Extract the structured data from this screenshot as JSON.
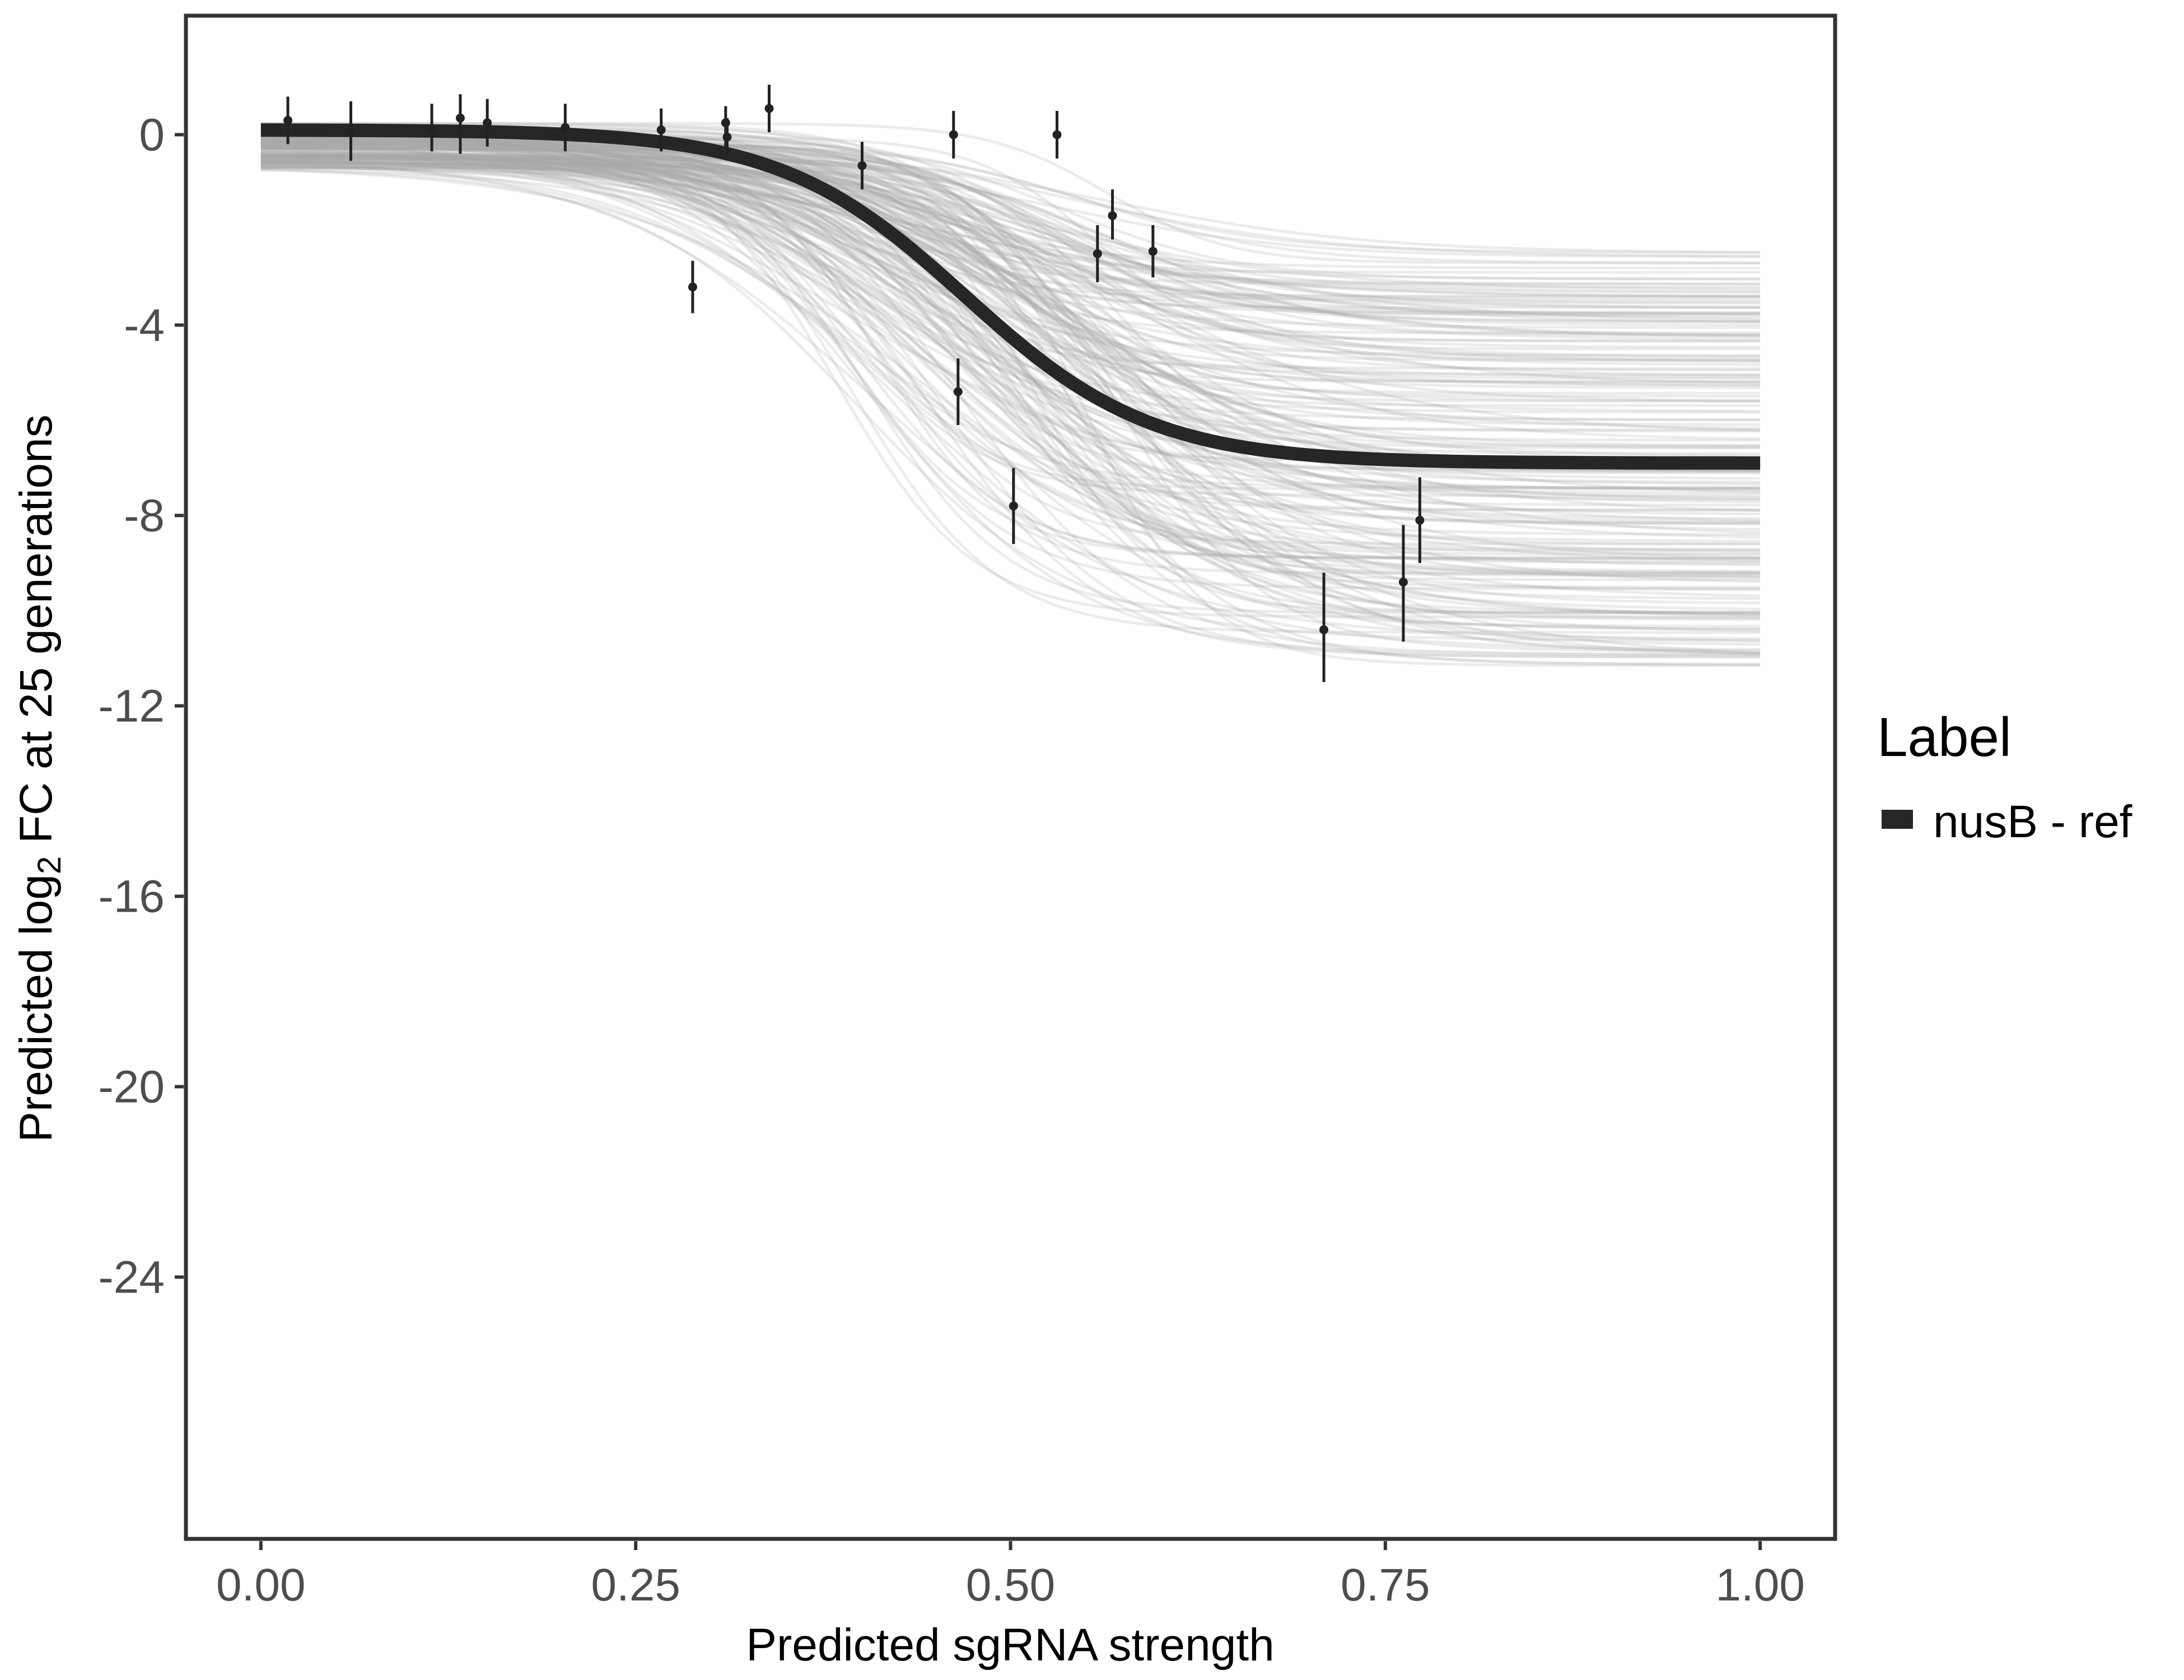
{
  "chart_data": {
    "type": "line",
    "title": "",
    "xlabel": "Predicted sgRNA strength",
    "ylabel_prefix": "Predicted  log",
    "ylabel_subscript": "2",
    "ylabel_suffix": " FC at 25 generations",
    "xlim": [
      -0.05,
      1.05
    ],
    "ylim": [
      -29.5,
      2.5
    ],
    "x_ticks": [
      0.0,
      0.25,
      0.5,
      0.75,
      1.0
    ],
    "x_tick_labels": [
      "0.00",
      "0.25",
      "0.50",
      "0.75",
      "1.00"
    ],
    "y_ticks": [
      0,
      -4,
      -8,
      -12,
      -16,
      -20,
      -24
    ],
    "y_tick_labels": [
      "0",
      "-4",
      "-8",
      "-12",
      "-16",
      "-20",
      "-24"
    ],
    "grid": false,
    "legend": {
      "title": "Label",
      "placement": "right",
      "entries": [
        {
          "label": "nusB - ref",
          "color": "#262626"
        }
      ]
    },
    "fit_curve": {
      "name": "nusB - ref",
      "color": "#262626",
      "model": "logistic",
      "top": 0.1,
      "bottom": -6.9,
      "midpoint": 0.47,
      "scale": 0.062
    },
    "posterior_curves": {
      "color": "#a9a9a9",
      "count": 200,
      "top_range": [
        -0.7,
        0.25
      ],
      "bottom_range": [
        -11.2,
        -2.4
      ],
      "midpoint_range": [
        0.38,
        0.58
      ],
      "scale_range": [
        0.04,
        0.1
      ]
    },
    "points": [
      {
        "x": 0.018,
        "y": 0.3,
        "lo": -0.2,
        "hi": 0.8
      },
      {
        "x": 0.06,
        "y": 0.05,
        "lo": -0.55,
        "hi": 0.7
      },
      {
        "x": 0.114,
        "y": 0.1,
        "lo": -0.35,
        "hi": 0.65
      },
      {
        "x": 0.133,
        "y": 0.35,
        "lo": -0.4,
        "hi": 0.85
      },
      {
        "x": 0.151,
        "y": 0.25,
        "lo": -0.25,
        "hi": 0.75
      },
      {
        "x": 0.203,
        "y": 0.15,
        "lo": -0.35,
        "hi": 0.65
      },
      {
        "x": 0.267,
        "y": 0.1,
        "lo": -0.35,
        "hi": 0.55
      },
      {
        "x": 0.288,
        "y": -3.2,
        "lo": -3.75,
        "hi": -2.65
      },
      {
        "x": 0.31,
        "y": 0.25,
        "lo": -0.25,
        "hi": 0.6
      },
      {
        "x": 0.311,
        "y": -0.05,
        "lo": -0.45,
        "hi": 0.35
      },
      {
        "x": 0.339,
        "y": 0.55,
        "lo": 0.05,
        "hi": 1.05
      },
      {
        "x": 0.401,
        "y": -0.65,
        "lo": -1.15,
        "hi": -0.15
      },
      {
        "x": 0.462,
        "y": 0.0,
        "lo": -0.5,
        "hi": 0.5
      },
      {
        "x": 0.465,
        "y": -5.4,
        "lo": -6.1,
        "hi": -4.7
      },
      {
        "x": 0.502,
        "y": -7.8,
        "lo": -8.6,
        "hi": -7.0
      },
      {
        "x": 0.531,
        "y": 0.0,
        "lo": -0.5,
        "hi": 0.5
      },
      {
        "x": 0.558,
        "y": -2.5,
        "lo": -3.1,
        "hi": -1.9
      },
      {
        "x": 0.568,
        "y": -1.7,
        "lo": -2.2,
        "hi": -1.15
      },
      {
        "x": 0.595,
        "y": -2.45,
        "lo": -3.0,
        "hi": -1.9
      },
      {
        "x": 0.709,
        "y": -10.4,
        "lo": -11.5,
        "hi": -9.2
      },
      {
        "x": 0.762,
        "y": -9.4,
        "lo": -10.65,
        "hi": -8.2
      },
      {
        "x": 0.773,
        "y": -8.1,
        "lo": -9.0,
        "hi": -7.2
      }
    ]
  }
}
